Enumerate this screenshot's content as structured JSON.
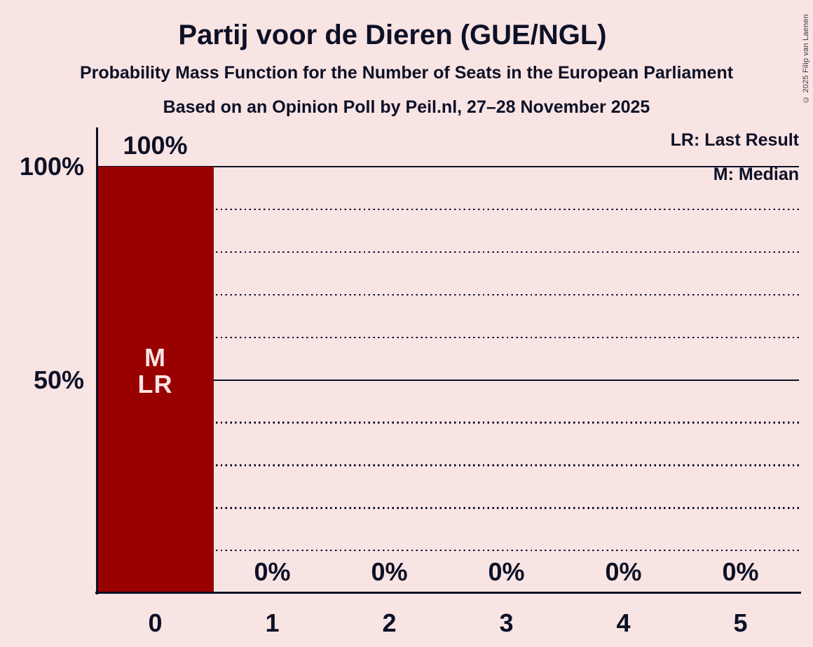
{
  "colors": {
    "background": "#f9e4e4",
    "bar": "#990000",
    "text": "#0d1126",
    "bar_annotation_text": "#f9e4e4",
    "copyright_text": "#3c3c46"
  },
  "copyright": "© 2025 Filip van Laenen",
  "chart_data": {
    "type": "bar",
    "title": "Partij voor de Dieren (GUE/NGL)",
    "subtitle": "Probability Mass Function for the Number of Seats in the European Parliament",
    "source_line": "Based on an Opinion Poll by Peil.nl, 27–28 November 2025",
    "xlabel": "",
    "ylabel": "",
    "ylim": [
      0,
      100
    ],
    "grid": "horizontal",
    "legend_position": "top-right",
    "legend": [
      {
        "id": "LR",
        "label": "LR: Last Result"
      },
      {
        "id": "M",
        "label": "M: Median"
      }
    ],
    "categories": [
      "0",
      "1",
      "2",
      "3",
      "4",
      "5"
    ],
    "values": [
      100,
      0,
      0,
      0,
      0,
      0
    ],
    "value_labels": [
      "100%",
      "0%",
      "0%",
      "0%",
      "0%",
      "0%"
    ],
    "y_ticks": [
      {
        "label": "100%",
        "value": 100
      },
      {
        "label": "50%",
        "value": 50
      }
    ],
    "gridlines": {
      "solid_at": [
        100,
        50
      ],
      "dotted_at": [
        90,
        80,
        70,
        60,
        40,
        30,
        20,
        10
      ]
    },
    "annotations": [
      {
        "category_index": 0,
        "lines": [
          "M",
          "LR"
        ]
      }
    ]
  }
}
